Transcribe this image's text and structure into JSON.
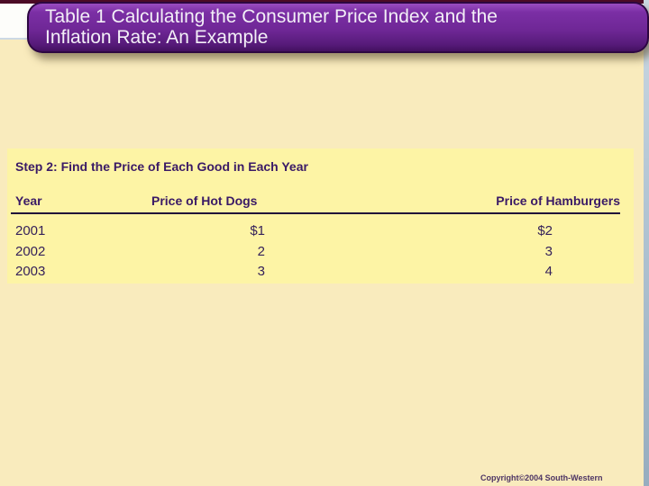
{
  "slide": {
    "title": {
      "lines": [
        "Table 1 Calculating the Consumer Price Index and the",
        "Inflation Rate: An Example"
      ]
    },
    "table": {
      "step_heading": "Step 2: Find the Price of Each Good in Each Year",
      "columns": [
        "Year",
        "Price of Hot Dogs",
        "Price of Hamburgers"
      ],
      "rows": [
        [
          "2001",
          "$1",
          "$2"
        ],
        [
          "2002",
          "2",
          "3"
        ],
        [
          "2003",
          "3",
          "4"
        ]
      ]
    },
    "footer": {
      "copyright": "Copyright©2004  South-Western"
    },
    "colors": {
      "banner_purple": "#6f2796",
      "banner_border": "#2d0741",
      "background_cream": "#f9ebbd",
      "panel_yellow": "#fdf4a5",
      "text_purple": "#3a1a66",
      "row_text_purple": "#35215a",
      "top_strip_maroon": "#4c0b26",
      "right_strip_blue": "#b3c6d4",
      "title_text": "#f3eff7"
    }
  }
}
